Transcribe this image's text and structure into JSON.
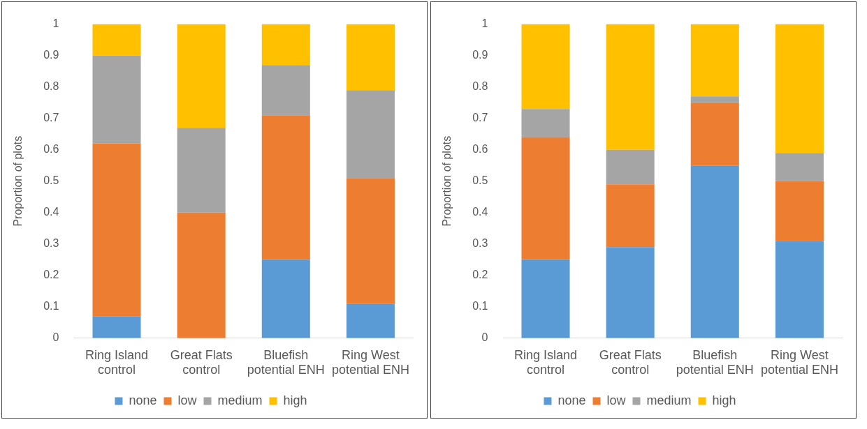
{
  "chart_data": [
    {
      "type": "bar",
      "stacked": true,
      "ylabel": "Proportion of plots",
      "categories": [
        "Ring Island control",
        "Great Flats control",
        "Bluefish potential ENH",
        "Ring West potential ENH"
      ],
      "ylim": [
        0,
        1
      ],
      "yticks": [
        0,
        0.1,
        0.2,
        0.3,
        0.4,
        0.5,
        0.6,
        0.7,
        0.8,
        0.9,
        1
      ],
      "grid": false,
      "legend": "bottom",
      "series": [
        {
          "name": "none",
          "color": "#5b9bd5",
          "values": [
            0.07,
            0,
            0.25,
            0.11
          ]
        },
        {
          "name": "low",
          "color": "#ed7d31",
          "values": [
            0.55,
            0.4,
            0.46,
            0.4
          ]
        },
        {
          "name": "medium",
          "color": "#a5a5a5",
          "values": [
            0.28,
            0.27,
            0.16,
            0.28
          ]
        },
        {
          "name": "high",
          "color": "#ffc000",
          "values": [
            0.1,
            0.33,
            0.13,
            0.21
          ]
        }
      ]
    },
    {
      "type": "bar",
      "stacked": true,
      "ylabel": "Proportion of plots",
      "categories": [
        "Ring Island control",
        "Great Flats control",
        "Bluefish potential ENH",
        "Ring West potential ENH"
      ],
      "ylim": [
        0,
        1
      ],
      "yticks": [
        0,
        0.1,
        0.2,
        0.3,
        0.4,
        0.5,
        0.6,
        0.7,
        0.8,
        0.9,
        1
      ],
      "grid": false,
      "legend": "bottom",
      "series": [
        {
          "name": "none",
          "color": "#5b9bd5",
          "values": [
            0.25,
            0.29,
            0.55,
            0.31
          ]
        },
        {
          "name": "low",
          "color": "#ed7d31",
          "values": [
            0.39,
            0.2,
            0.2,
            0.19
          ]
        },
        {
          "name": "medium",
          "color": "#a5a5a5",
          "values": [
            0.09,
            0.11,
            0.02,
            0.09
          ]
        },
        {
          "name": "high",
          "color": "#ffc000",
          "values": [
            0.27,
            0.4,
            0.23,
            0.41
          ]
        }
      ]
    }
  ]
}
